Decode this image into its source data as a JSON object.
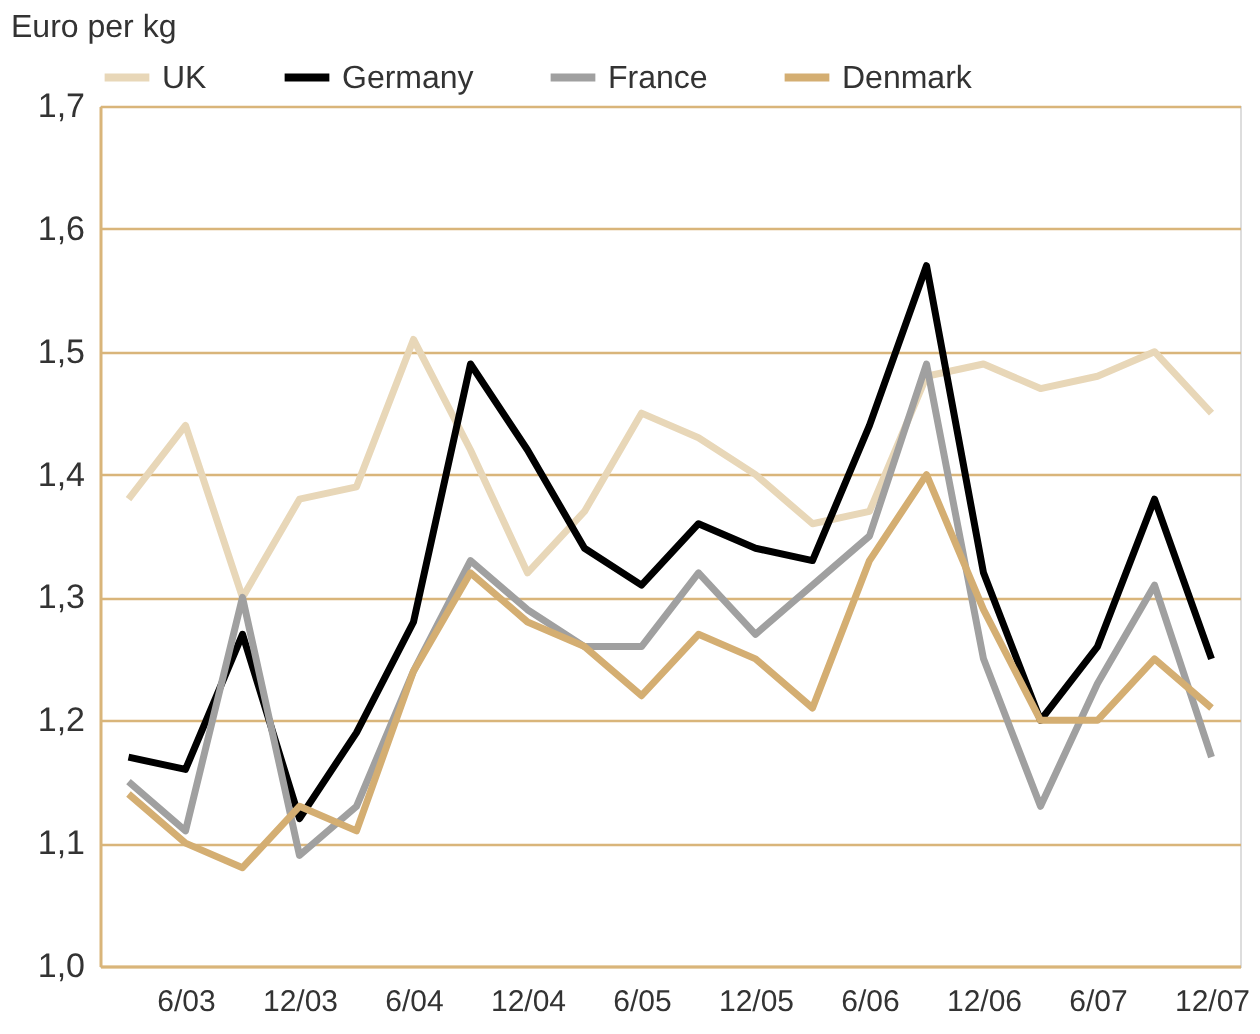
{
  "chart_data": {
    "type": "line",
    "ylabel": "Euro per kg",
    "categories": [
      null,
      "6/03",
      null,
      "12/03",
      null,
      "6/04",
      null,
      "12/04",
      null,
      "6/05",
      null,
      "12/05",
      null,
      "6/06",
      null,
      "12/06",
      null,
      "6/07",
      null,
      "12/07"
    ],
    "series": [
      {
        "name": "UK",
        "color": "#e8d7b8",
        "values": [
          1.38,
          1.44,
          1.3,
          1.38,
          1.39,
          1.51,
          1.42,
          1.32,
          1.37,
          1.45,
          1.43,
          1.4,
          1.36,
          1.37,
          1.48,
          1.49,
          1.47,
          1.48,
          1.5,
          1.45
        ]
      },
      {
        "name": "Germany",
        "color": "#000000",
        "values": [
          1.17,
          1.16,
          1.27,
          1.12,
          1.19,
          1.28,
          1.49,
          1.42,
          1.34,
          1.31,
          1.36,
          1.34,
          1.33,
          1.44,
          1.57,
          1.32,
          1.2,
          1.26,
          1.38,
          1.25
        ]
      },
      {
        "name": "France",
        "color": "#a0a0a0",
        "values": [
          1.15,
          1.11,
          1.3,
          1.09,
          1.13,
          1.24,
          1.33,
          1.29,
          1.26,
          1.26,
          1.32,
          1.27,
          1.31,
          1.35,
          1.49,
          1.25,
          1.13,
          1.23,
          1.31,
          1.17
        ]
      },
      {
        "name": "Denmark",
        "color": "#d4ae72",
        "values": [
          1.14,
          1.1,
          1.08,
          1.13,
          1.11,
          1.24,
          1.32,
          1.28,
          1.26,
          1.22,
          1.27,
          1.25,
          1.21,
          1.33,
          1.4,
          1.29,
          1.2,
          1.2,
          1.25,
          1.21
        ]
      }
    ],
    "ylim": [
      1.0,
      1.7
    ],
    "yticks": [
      {
        "value": 1.0,
        "label": "1,0"
      },
      {
        "value": 1.1,
        "label": "1,1"
      },
      {
        "value": 1.2,
        "label": "1,2"
      },
      {
        "value": 1.3,
        "label": "1,3"
      },
      {
        "value": 1.4,
        "label": "1,4"
      },
      {
        "value": 1.5,
        "label": "1,5"
      },
      {
        "value": 1.6,
        "label": "1,6"
      },
      {
        "value": 1.7,
        "label": "1,7"
      }
    ],
    "grid": "y",
    "legend": "top",
    "line_style": "solid",
    "marker": "none"
  }
}
